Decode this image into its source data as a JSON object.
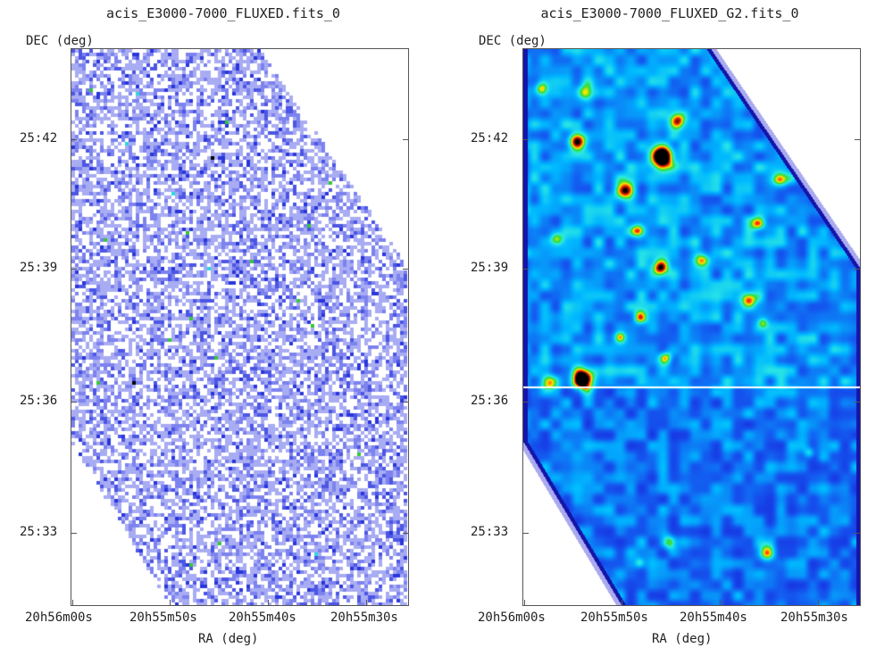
{
  "chart_data": [
    {
      "type": "heatmap",
      "title": "acis_E3000-7000_FLUXED.fits_0",
      "xlabel": "RA (deg)",
      "ylabel": "DEC (deg)",
      "x_ticks": [
        "20h56m00s",
        "20h55m50s",
        "20h55m40s",
        "20h55m30s"
      ],
      "y_ticks": [
        "25:42",
        "25:39",
        "25:36",
        "25:33"
      ],
      "colormap": [
        "#ffffff",
        "#9aa0f0",
        "#3a46e0",
        "#1f7fe0",
        "#2ce0e0",
        "#3adc3a",
        "#000000"
      ],
      "rendering": "sparse pixelated counts"
    },
    {
      "type": "heatmap",
      "title": "acis_E3000-7000_FLUXED_G2.fits_0",
      "xlabel": "RA (deg)",
      "ylabel": "DEC (deg)",
      "x_ticks": [
        "20h56m00s",
        "20h55m50s",
        "20h55m40s",
        "20h55m30s"
      ],
      "y_ticks": [
        "25:42",
        "25:39",
        "25:36",
        "25:33"
      ],
      "colormap": [
        "#ffffff",
        "#1a1ad8",
        "#00b8ff",
        "#2ef0e0",
        "#33dd33",
        "#ffe600",
        "#ff2b00",
        "#000000"
      ],
      "rendering": "gaussian smoothed"
    }
  ]
}
